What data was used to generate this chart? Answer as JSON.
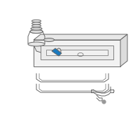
{
  "background": "#ffffff",
  "line_color": "#666666",
  "highlight_color": "#1a7abf",
  "line_width": 0.7,
  "fig_size": [
    2.0,
    2.0
  ],
  "dpi": 100
}
